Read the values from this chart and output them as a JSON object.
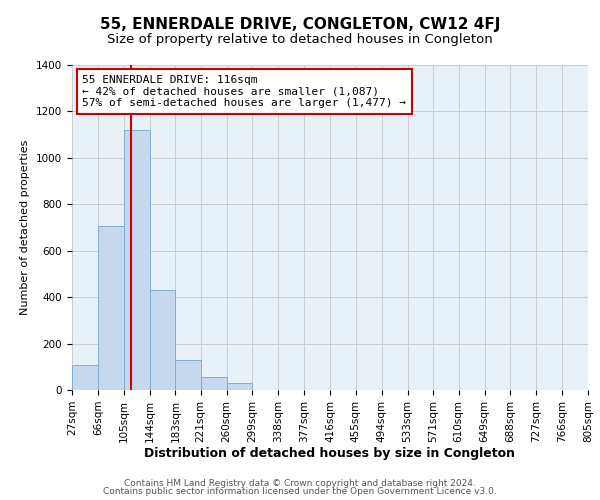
{
  "title": "55, ENNERDALE DRIVE, CONGLETON, CW12 4FJ",
  "subtitle": "Size of property relative to detached houses in Congleton",
  "xlabel": "Distribution of detached houses by size in Congleton",
  "ylabel": "Number of detached properties",
  "bin_edges": [
    27,
    66,
    105,
    144,
    183,
    221,
    260,
    299,
    338,
    377,
    416,
    455,
    494,
    533,
    571,
    610,
    649,
    688,
    727,
    766,
    805
  ],
  "bin_labels": [
    "27sqm",
    "66sqm",
    "105sqm",
    "144sqm",
    "183sqm",
    "221sqm",
    "260sqm",
    "299sqm",
    "338sqm",
    "377sqm",
    "416sqm",
    "455sqm",
    "494sqm",
    "533sqm",
    "571sqm",
    "610sqm",
    "649sqm",
    "688sqm",
    "727sqm",
    "766sqm",
    "805sqm"
  ],
  "bar_heights": [
    107,
    706,
    1120,
    430,
    130,
    57,
    32,
    0,
    0,
    0,
    0,
    0,
    0,
    0,
    0,
    0,
    0,
    0,
    0,
    0
  ],
  "bar_color": "#c5d8ed",
  "bar_edge_color": "#7bafd4",
  "vline_x": 116,
  "vline_color": "#cc0000",
  "annotation_title": "55 ENNERDALE DRIVE: 116sqm",
  "annotation_line1": "← 42% of detached houses are smaller (1,087)",
  "annotation_line2": "57% of semi-detached houses are larger (1,477) →",
  "annotation_box_color": "#ffffff",
  "annotation_box_edge": "#cc0000",
  "ylim": [
    0,
    1400
  ],
  "yticks": [
    0,
    200,
    400,
    600,
    800,
    1000,
    1200,
    1400
  ],
  "grid_color": "#cccccc",
  "bg_color": "#e8f0f8",
  "footer_line1": "Contains HM Land Registry data © Crown copyright and database right 2024.",
  "footer_line2": "Contains public sector information licensed under the Open Government Licence v3.0.",
  "title_fontsize": 11,
  "subtitle_fontsize": 9.5,
  "xlabel_fontsize": 9,
  "ylabel_fontsize": 8,
  "tick_fontsize": 7.5,
  "annotation_fontsize": 8,
  "footer_fontsize": 6.5
}
